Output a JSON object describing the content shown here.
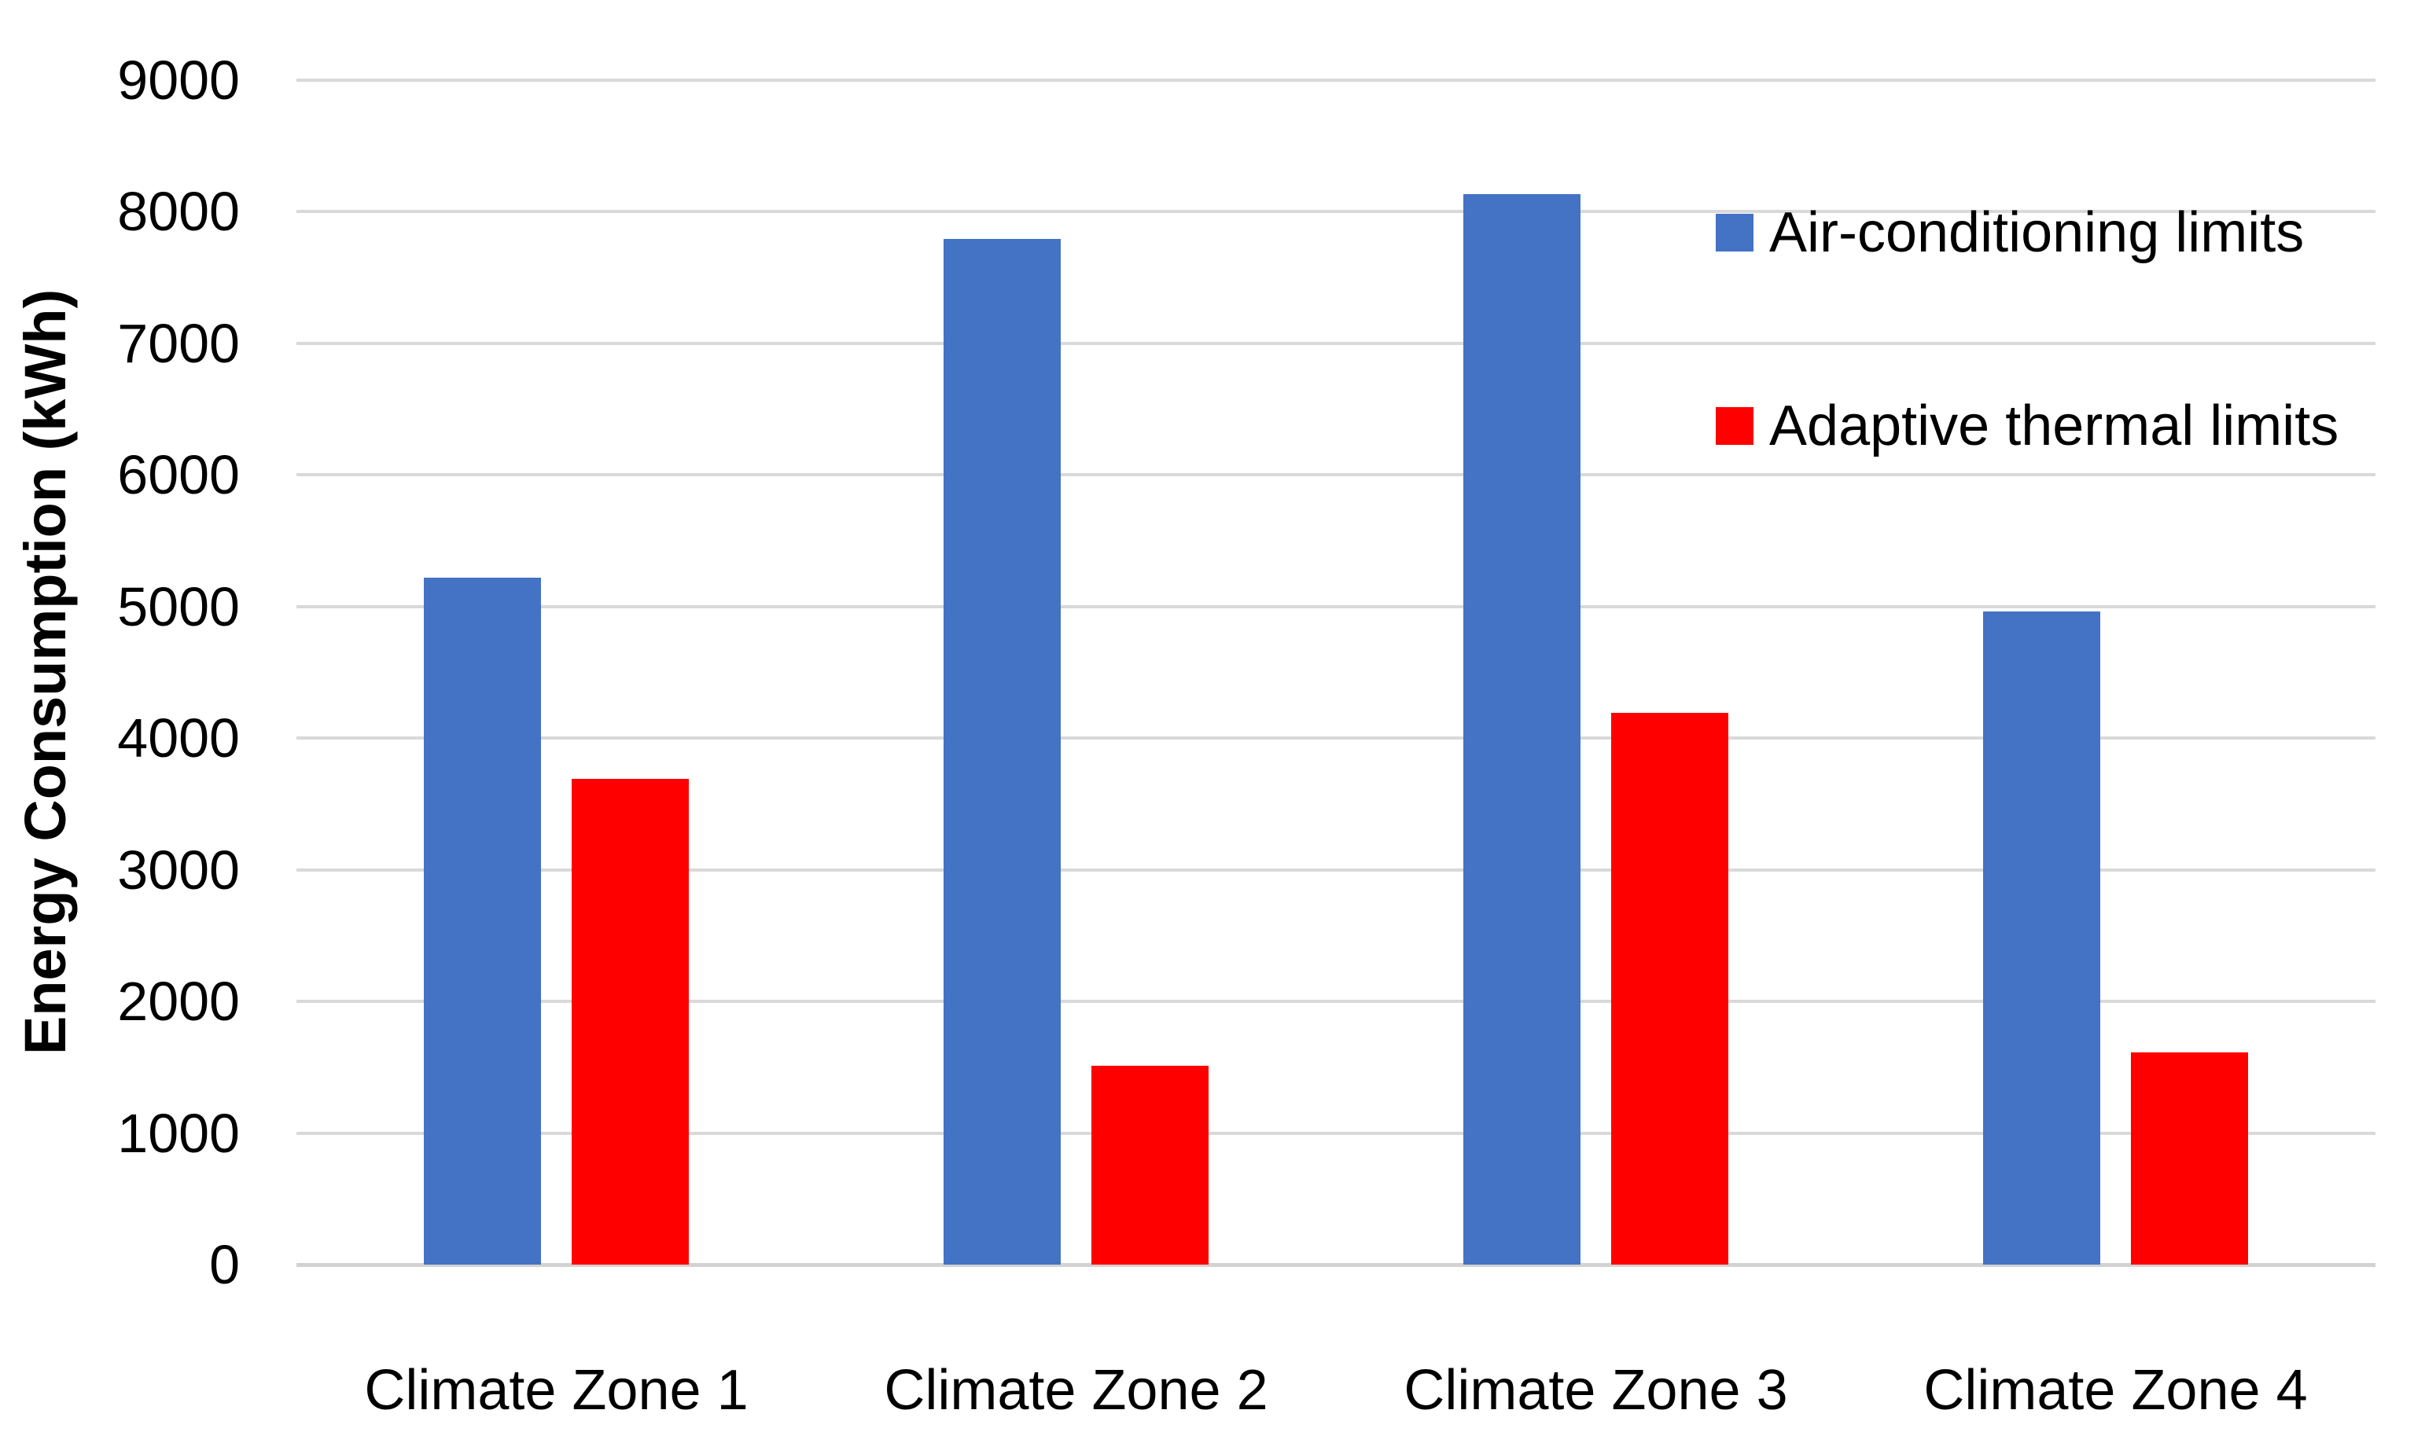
{
  "chart_data": {
    "type": "bar",
    "title": "",
    "categories": [
      "Climate Zone 1",
      "Climate Zone 2",
      "Climate Zone 3",
      "Climate Zone 4"
    ],
    "series": [
      {
        "name": "Air-conditioning limits",
        "color": "#4472C4",
        "values": [
          5220,
          7790,
          8130,
          4960
        ]
      },
      {
        "name": "Adaptive thermal limits",
        "color": "#FF0000",
        "values": [
          3690,
          1510,
          4190,
          1610
        ]
      }
    ],
    "xlabel": "",
    "ylabel": "Energy Consumption (kWh)",
    "ylim": [
      0,
      9000
    ],
    "ytick_step": 1000,
    "ytick_labels": [
      "0",
      "1000",
      "2000",
      "3000",
      "4000",
      "5000",
      "6000",
      "7000",
      "8000",
      "9000"
    ],
    "grid": true,
    "gridline_color": "#D9D9D9",
    "bar_colors": {
      "air_conditioning": "#4472C4",
      "adaptive_thermal": "#FF0000"
    },
    "text_color": "#000000",
    "background_color": "#FFFFFF",
    "legend_position": "upper-right"
  }
}
